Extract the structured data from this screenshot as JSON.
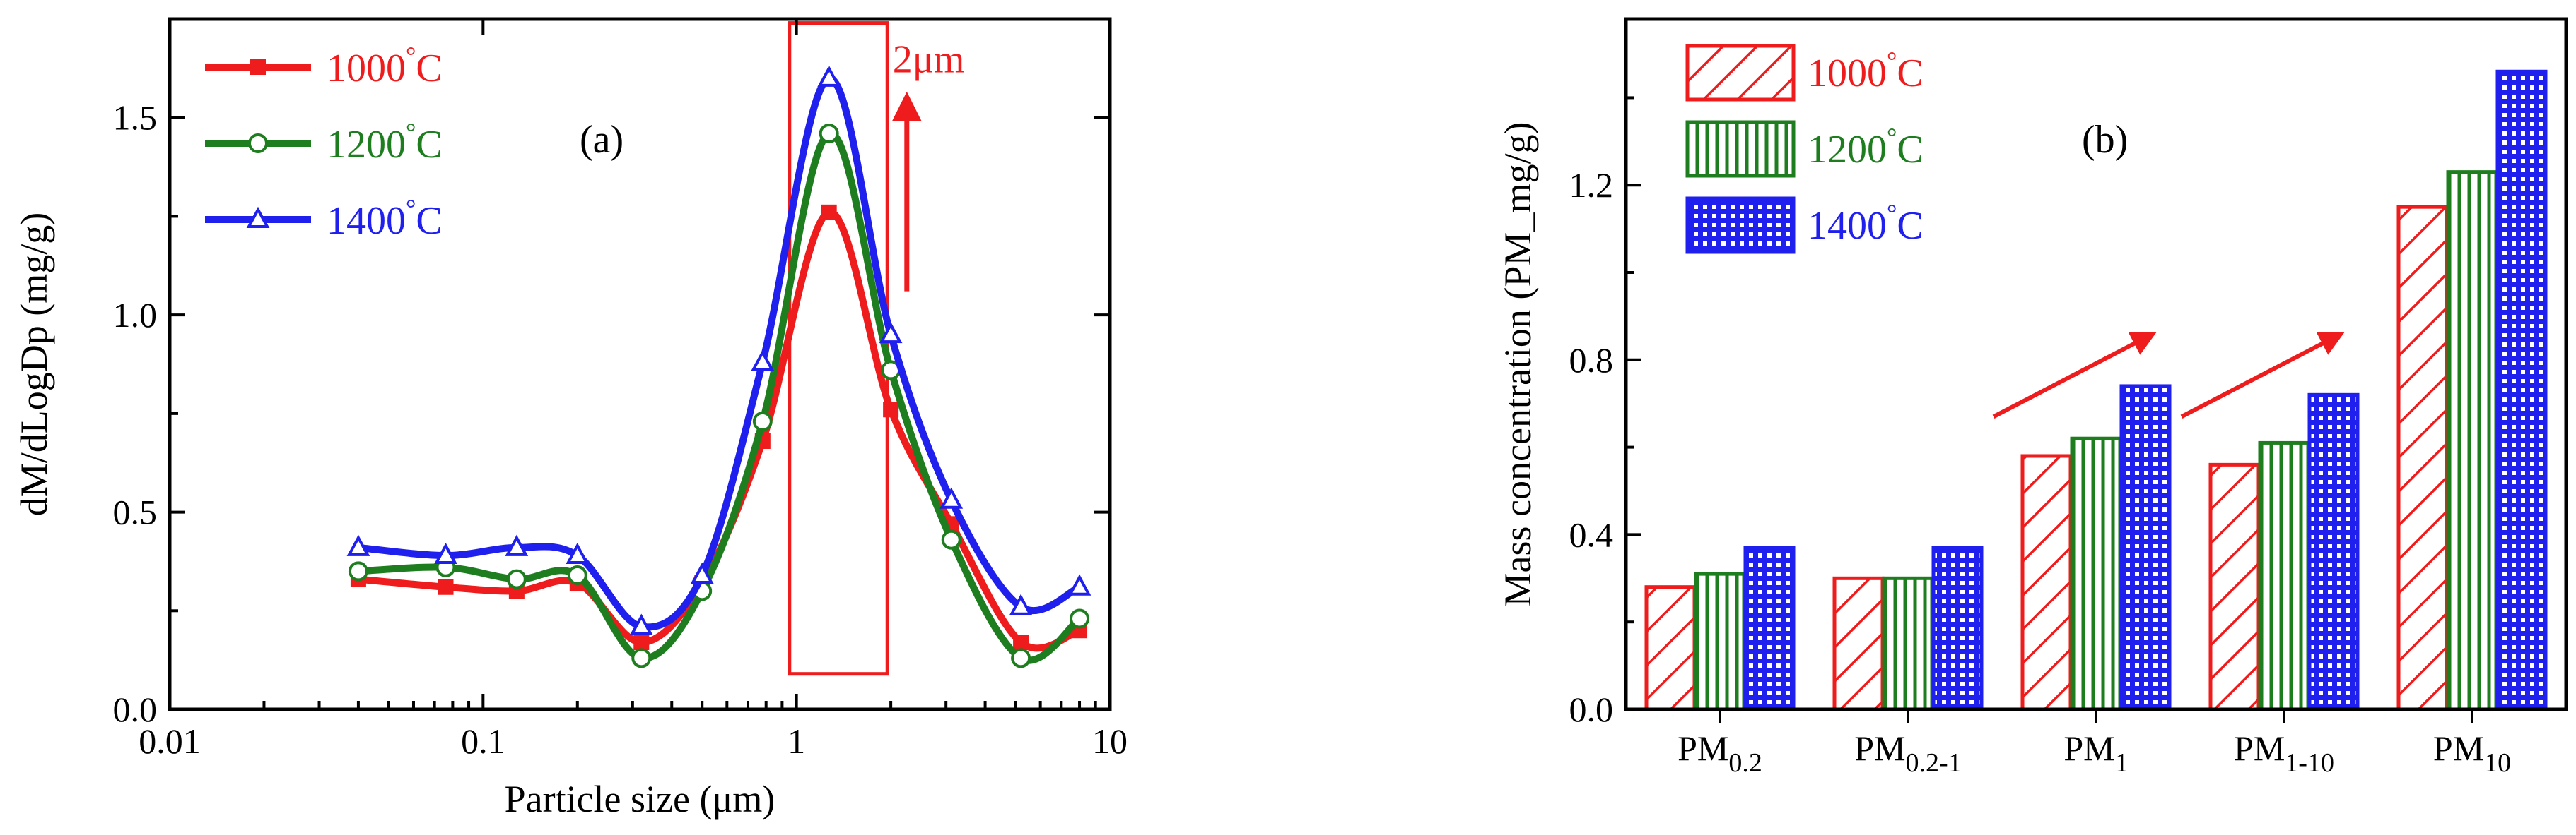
{
  "colors": {
    "s1000": "#ee1c1c",
    "s1200": "#1e7d1e",
    "s1400": "#1f1fee"
  },
  "legend_unit": "°C",
  "chart_data": [
    {
      "type": "line",
      "panel_label": "(a)",
      "xlabel": "Particle size (μm)",
      "ylabel": "dM/dLogDp (mg/g)",
      "xscale": "log",
      "xlim": [
        0.01,
        10
      ],
      "ylim": [
        0.0,
        1.75
      ],
      "xticks": [
        0.01,
        0.1,
        1,
        10
      ],
      "xtick_labels": [
        "0.01",
        "0.1",
        "1",
        "10"
      ],
      "yticks": [
        0.0,
        0.5,
        1.0,
        1.5
      ],
      "ytick_labels": [
        "0.0",
        "0.5",
        "1.0",
        "1.5"
      ],
      "x": [
        0.04,
        0.076,
        0.128,
        0.2,
        0.32,
        0.5,
        0.78,
        1.27,
        2.0,
        3.12,
        5.2,
        8.0
      ],
      "series": [
        {
          "name": "1000",
          "marker": "square",
          "color": "#ee1c1c",
          "values": [
            0.33,
            0.31,
            0.3,
            0.32,
            0.17,
            0.32,
            0.68,
            1.26,
            0.76,
            0.47,
            0.17,
            0.2
          ]
        },
        {
          "name": "1200",
          "marker": "circle",
          "color": "#1e7d1e",
          "values": [
            0.35,
            0.36,
            0.33,
            0.34,
            0.13,
            0.3,
            0.73,
            1.46,
            0.86,
            0.43,
            0.13,
            0.23
          ]
        },
        {
          "name": "1400",
          "marker": "triangle",
          "color": "#1f1fee",
          "values": [
            0.41,
            0.39,
            0.41,
            0.39,
            0.21,
            0.34,
            0.88,
            1.6,
            0.95,
            0.53,
            0.26,
            0.31
          ]
        }
      ],
      "annotation": {
        "text": "2μm",
        "box_x": [
          0.95,
          1.95
        ],
        "box_y": [
          0.09,
          1.74
        ],
        "arrow_x": 2.25,
        "arrow_y": [
          1.06,
          1.6
        ]
      }
    },
    {
      "type": "bar",
      "panel_label": "(b)",
      "xlabel": "",
      "ylabel": "Mass concentration (PM_mg/g)",
      "ylim": [
        0.0,
        1.58
      ],
      "yticks": [
        0.0,
        0.4,
        0.8,
        1.2
      ],
      "ytick_labels": [
        "0.0",
        "0.4",
        "0.8",
        "1.2"
      ],
      "categories": [
        {
          "base": "PM",
          "sub": "0.2"
        },
        {
          "base": "PM",
          "sub": "0.2-1"
        },
        {
          "base": "PM",
          "sub": "1"
        },
        {
          "base": "PM",
          "sub": "1-10"
        },
        {
          "base": "PM",
          "sub": "10"
        }
      ],
      "series": [
        {
          "name": "1000",
          "pattern": "diagonal",
          "color": "#ee1c1c",
          "values": [
            0.28,
            0.3,
            0.58,
            0.56,
            1.15
          ]
        },
        {
          "name": "1200",
          "pattern": "vertical",
          "color": "#1e7d1e",
          "values": [
            0.31,
            0.3,
            0.62,
            0.61,
            1.23
          ]
        },
        {
          "name": "1400",
          "pattern": "grid",
          "color": "#1f1fee",
          "values": [
            0.37,
            0.37,
            0.74,
            0.72,
            1.46
          ]
        }
      ],
      "trend_arrows": [
        {
          "category_index": 2,
          "y": [
            0.67,
            0.87
          ]
        },
        {
          "category_index": 3,
          "y": [
            0.67,
            0.87
          ]
        }
      ]
    }
  ]
}
